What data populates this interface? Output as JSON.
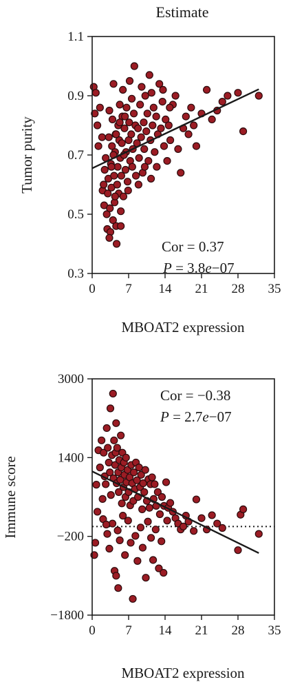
{
  "chart_data": [
    {
      "type": "scatter",
      "title": "Estimate",
      "xlabel": "MBOAT2 expression",
      "ylabel": "Tumor purity",
      "xlim": [
        0,
        35
      ],
      "ylim": [
        0.3,
        1.1
      ],
      "xticks": [
        "0",
        "7",
        "14",
        "21",
        "28",
        "35"
      ],
      "yticks": [
        "0.3",
        "0.5",
        "0.7",
        "0.9",
        "1.1"
      ],
      "annotation": {
        "cor": "Cor = 0.37",
        "p_prefix": "P",
        "p_value": " = 3.8",
        "p_e": "e",
        "p_exp": "−07"
      },
      "fit_line": {
        "x": [
          0,
          32
        ],
        "y": [
          0.655,
          0.922
        ]
      },
      "colors": {
        "point_fill": "#9b1c24",
        "point_stroke": "#2a0a0c",
        "line": "#1a1a1a"
      },
      "points": [
        [
          0.3,
          0.93
        ],
        [
          0.7,
          0.91
        ],
        [
          0.5,
          0.84
        ],
        [
          1.5,
          0.86
        ],
        [
          1.9,
          0.76
        ],
        [
          2.0,
          0.58
        ],
        [
          2.3,
          0.53
        ],
        [
          2.4,
          0.65
        ],
        [
          2.6,
          0.69
        ],
        [
          2.8,
          0.5
        ],
        [
          2.9,
          0.45
        ],
        [
          3.0,
          0.57
        ],
        [
          3.1,
          0.62
        ],
        [
          3.2,
          0.76
        ],
        [
          3.3,
          0.85
        ],
        [
          3.4,
          0.52
        ],
        [
          3.5,
          0.44
        ],
        [
          3.6,
          0.67
        ],
        [
          3.7,
          0.59
        ],
        [
          3.8,
          0.73
        ],
        [
          3.9,
          0.82
        ],
        [
          4.0,
          0.48
        ],
        [
          4.1,
          0.94
        ],
        [
          4.2,
          0.63
        ],
        [
          4.3,
          0.54
        ],
        [
          4.4,
          0.71
        ],
        [
          4.5,
          0.77
        ],
        [
          4.6,
          0.46
        ],
        [
          4.7,
          0.4
        ],
        [
          4.8,
          0.6
        ],
        [
          4.9,
          0.66
        ],
        [
          5.0,
          0.8
        ],
        [
          5.1,
          0.57
        ],
        [
          5.2,
          0.75
        ],
        [
          5.3,
          0.87
        ],
        [
          5.4,
          0.69
        ],
        [
          5.5,
          0.51
        ],
        [
          5.6,
          0.63
        ],
        [
          5.7,
          0.74
        ],
        [
          5.8,
          0.83
        ],
        [
          5.9,
          0.92
        ],
        [
          6.0,
          0.56
        ],
        [
          6.2,
          0.79
        ],
        [
          6.4,
          0.65
        ],
        [
          6.5,
          0.71
        ],
        [
          6.6,
          0.86
        ],
        [
          6.8,
          0.61
        ],
        [
          7.0,
          0.75
        ],
        [
          7.1,
          0.81
        ],
        [
          7.2,
          0.95
        ],
        [
          7.3,
          0.68
        ],
        [
          7.5,
          0.77
        ],
        [
          7.6,
          0.89
        ],
        [
          7.8,
          0.72
        ],
        [
          8.0,
          0.84
        ],
        [
          8.1,
          1.0
        ],
        [
          8.3,
          0.8
        ],
        [
          8.4,
          0.63
        ],
        [
          8.6,
          0.74
        ],
        [
          8.8,
          0.79
        ],
        [
          9.0,
          0.69
        ],
        [
          9.2,
          0.87
        ],
        [
          9.4,
          0.76
        ],
        [
          9.5,
          0.93
        ],
        [
          9.7,
          0.64
        ],
        [
          9.9,
          0.81
        ],
        [
          10.0,
          0.72
        ],
        [
          10.2,
          0.9
        ],
        [
          10.4,
          0.78
        ],
        [
          10.6,
          0.84
        ],
        [
          10.8,
          0.68
        ],
        [
          11.0,
          0.97
        ],
        [
          11.2,
          0.75
        ],
        [
          11.4,
          0.91
        ],
        [
          11.6,
          0.8
        ],
        [
          11.8,
          0.86
        ],
        [
          12.0,
          0.71
        ],
        [
          12.3,
          0.83
        ],
        [
          12.6,
          0.77
        ],
        [
          12.9,
          0.94
        ],
        [
          13.2,
          0.79
        ],
        [
          13.5,
          0.88
        ],
        [
          13.8,
          0.73
        ],
        [
          14.1,
          0.82
        ],
        [
          14.4,
          0.68
        ],
        [
          14.7,
          0.8
        ],
        [
          15.0,
          0.75
        ],
        [
          15.5,
          0.87
        ],
        [
          16.0,
          0.9
        ],
        [
          16.5,
          0.72
        ],
        [
          17.0,
          0.64
        ],
        [
          17.5,
          0.79
        ],
        [
          18.0,
          0.83
        ],
        [
          18.5,
          0.77
        ],
        [
          19.0,
          0.86
        ],
        [
          19.5,
          0.8
        ],
        [
          20.0,
          0.73
        ],
        [
          21.0,
          0.84
        ],
        [
          22.0,
          0.92
        ],
        [
          23.0,
          0.82
        ],
        [
          24.0,
          0.85
        ],
        [
          25.0,
          0.88
        ],
        [
          26.0,
          0.9
        ],
        [
          28.0,
          0.91
        ],
        [
          29.0,
          0.78
        ],
        [
          32.0,
          0.9
        ],
        [
          1.0,
          0.8
        ],
        [
          1.2,
          0.73
        ],
        [
          2.2,
          0.6
        ],
        [
          3.3,
          0.42
        ],
        [
          4.4,
          0.56
        ],
        [
          5.5,
          0.46
        ],
        [
          6.1,
          0.7
        ],
        [
          6.9,
          0.58
        ],
        [
          7.7,
          0.66
        ],
        [
          8.9,
          0.6
        ],
        [
          10.1,
          0.66
        ],
        [
          11.3,
          0.62
        ],
        [
          12.4,
          0.66
        ],
        [
          13.6,
          0.92
        ],
        [
          14.9,
          0.86
        ],
        [
          4.6,
          0.77
        ],
        [
          5.3,
          0.81
        ],
        [
          6.3,
          0.83
        ],
        [
          3.7,
          0.66
        ],
        [
          4.1,
          0.7
        ]
      ]
    },
    {
      "type": "scatter",
      "xlabel": "MBOAT2 expression",
      "ylabel": "Immune score",
      "xlim": [
        0,
        35
      ],
      "ylim": [
        -1800,
        3000
      ],
      "xticks": [
        "0",
        "7",
        "14",
        "21",
        "28",
        "35"
      ],
      "yticks": [
        "−1800",
        "−200",
        "1400",
        "3000"
      ],
      "annotation": {
        "cor": "Cor = −0.38",
        "p_prefix": "P",
        "p_value": " = 2.7",
        "p_e": "e",
        "p_exp": "−07"
      },
      "fit_line": {
        "x": [
          0,
          32
        ],
        "y": [
          1120,
          -540
        ]
      },
      "reference_line": {
        "y": 0,
        "style": "dotted"
      },
      "colors": {
        "point_fill": "#9b1c24",
        "point_stroke": "#2a0a0c",
        "line": "#1a1a1a"
      },
      "points": [
        [
          0.4,
          -580
        ],
        [
          0.6,
          -330
        ],
        [
          0.8,
          850
        ],
        [
          1.0,
          300
        ],
        [
          1.2,
          1550
        ],
        [
          1.5,
          1200
        ],
        [
          1.8,
          1750
        ],
        [
          2.0,
          560
        ],
        [
          2.2,
          1500
        ],
        [
          2.4,
          1020
        ],
        [
          2.6,
          860
        ],
        [
          2.8,
          2000
        ],
        [
          3.0,
          1600
        ],
        [
          3.2,
          1300
        ],
        [
          3.4,
          1100
        ],
        [
          3.5,
          2400
        ],
        [
          3.6,
          640
        ],
        [
          3.8,
          1450
        ],
        [
          4.0,
          2700
        ],
        [
          4.1,
          980
        ],
        [
          4.2,
          1750
        ],
        [
          4.4,
          1250
        ],
        [
          4.5,
          1500
        ],
        [
          4.6,
          2100
        ],
        [
          4.7,
          880
        ],
        [
          4.8,
          1600
        ],
        [
          5.0,
          1100
        ],
        [
          5.1,
          700
        ],
        [
          5.2,
          1350
        ],
        [
          5.4,
          950
        ],
        [
          5.5,
          1850
        ],
        [
          5.6,
          1200
        ],
        [
          5.7,
          470
        ],
        [
          5.8,
          1500
        ],
        [
          6.0,
          800
        ],
        [
          6.1,
          1300
        ],
        [
          6.2,
          1050
        ],
        [
          6.4,
          600
        ],
        [
          6.5,
          1400
        ],
        [
          6.6,
          900
        ],
        [
          6.8,
          1150
        ],
        [
          7.0,
          700
        ],
        [
          7.2,
          1000
        ],
        [
          7.3,
          430
        ],
        [
          7.5,
          1250
        ],
        [
          7.7,
          880
        ],
        [
          7.9,
          520
        ],
        [
          8.0,
          1100
        ],
        [
          8.2,
          760
        ],
        [
          8.4,
          1300
        ],
        [
          8.6,
          940
        ],
        [
          8.8,
          600
        ],
        [
          9.0,
          1200
        ],
        [
          9.2,
          800
        ],
        [
          9.4,
          1050
        ],
        [
          9.6,
          350
        ],
        [
          9.8,
          880
        ],
        [
          10.0,
          700
        ],
        [
          10.2,
          1150
        ],
        [
          10.5,
          520
        ],
        [
          10.8,
          960
        ],
        [
          11.0,
          380
        ],
        [
          11.2,
          860
        ],
        [
          11.5,
          1000
        ],
        [
          11.8,
          560
        ],
        [
          12.0,
          860
        ],
        [
          12.3,
          420
        ],
        [
          12.6,
          700
        ],
        [
          13.0,
          250
        ],
        [
          13.4,
          600
        ],
        [
          13.8,
          420
        ],
        [
          14.2,
          900
        ],
        [
          14.6,
          380
        ],
        [
          15.0,
          480
        ],
        [
          15.5,
          300
        ],
        [
          16.0,
          170
        ],
        [
          16.5,
          60
        ],
        [
          17.0,
          -60
        ],
        [
          17.5,
          0
        ],
        [
          18.0,
          220
        ],
        [
          18.5,
          100
        ],
        [
          19.5,
          -90
        ],
        [
          20.0,
          550
        ],
        [
          21.0,
          170
        ],
        [
          22.0,
          -60
        ],
        [
          23.0,
          230
        ],
        [
          24.0,
          60
        ],
        [
          25.0,
          -30
        ],
        [
          28.0,
          -480
        ],
        [
          28.5,
          240
        ],
        [
          29.0,
          350
        ],
        [
          32.0,
          -150
        ],
        [
          2.1,
          150
        ],
        [
          2.9,
          -150
        ],
        [
          3.3,
          -450
        ],
        [
          3.9,
          60
        ],
        [
          4.3,
          -900
        ],
        [
          4.9,
          -80
        ],
        [
          5.3,
          -280
        ],
        [
          5.9,
          220
        ],
        [
          6.3,
          -580
        ],
        [
          6.9,
          120
        ],
        [
          7.4,
          -330
        ],
        [
          7.8,
          -1470
        ],
        [
          8.3,
          -190
        ],
        [
          8.7,
          -700
        ],
        [
          9.3,
          -20
        ],
        [
          9.7,
          -430
        ],
        [
          10.3,
          -1040
        ],
        [
          10.7,
          100
        ],
        [
          11.3,
          -230
        ],
        [
          11.7,
          -680
        ],
        [
          12.2,
          -60
        ],
        [
          12.8,
          -850
        ],
        [
          13.3,
          -300
        ],
        [
          13.7,
          -940
        ],
        [
          14.4,
          120
        ],
        [
          4.6,
          -1000
        ],
        [
          5.0,
          -1250
        ],
        [
          2.7,
          40
        ]
      ]
    }
  ]
}
